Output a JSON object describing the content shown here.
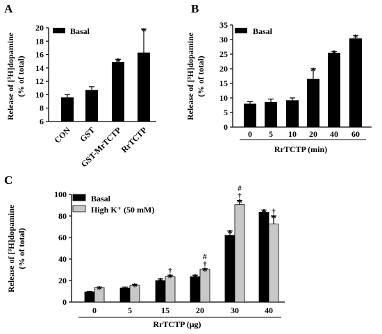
{
  "chart_data": [
    {
      "panel": "A",
      "type": "bar",
      "categories": [
        "CON",
        "GST",
        "GST-MrTCTP",
        "RrTCTP"
      ],
      "series": [
        {
          "name": "Basal",
          "color": "#000000",
          "values": [
            9.6,
            10.7,
            14.9,
            16.3
          ],
          "errors": [
            0.4,
            0.5,
            0.4,
            3.5
          ],
          "markers": [
            "",
            "",
            "*",
            "*"
          ]
        }
      ],
      "ylabel": "Release of [³H]dopamine (% of total)",
      "ylim": [
        6,
        20
      ],
      "yticks": [
        "6",
        "8",
        "10",
        "12",
        "14",
        "16",
        "18",
        "20"
      ],
      "legend": "top-left",
      "grid": false
    },
    {
      "panel": "B",
      "type": "bar",
      "categories": [
        "0",
        "5",
        "10",
        "20",
        "40",
        "60"
      ],
      "series": [
        {
          "name": "Basal",
          "color": "#000000",
          "values": [
            8.0,
            8.6,
            9.2,
            16.5,
            25.5,
            30.4
          ],
          "errors": [
            0.7,
            1.0,
            0.8,
            3.5,
            0.4,
            1.0
          ],
          "markers": [
            "",
            "",
            "",
            "*",
            "*",
            "*"
          ]
        }
      ],
      "ylabel": "Release of [³H]dopamine (% of total)",
      "xlabel": "RrTCTP (min)",
      "ylim": [
        0,
        35
      ],
      "yticks": [
        "0",
        "5",
        "10",
        "15",
        "20",
        "25",
        "30",
        "35"
      ],
      "legend": "top-left",
      "grid": false
    },
    {
      "panel": "C",
      "type": "bar",
      "categories": [
        "0",
        "5",
        "15",
        "20",
        "30",
        "40"
      ],
      "series": [
        {
          "name": "Basal",
          "color": "#000000",
          "values": [
            9.5,
            13.0,
            20.0,
            23.5,
            62.0,
            83.5
          ],
          "errors": [
            0.5,
            1.0,
            1.5,
            1.5,
            4.0,
            2.0
          ],
          "markers": [
            "",
            "",
            "*",
            "*",
            "*",
            "*"
          ]
        },
        {
          "name": "High K⁺ (50 mM)",
          "color": "#c8c8c8",
          "values": [
            13.5,
            15.5,
            23.5,
            30.5,
            90.5,
            72.5
          ],
          "errors": [
            0.5,
            1.0,
            1.5,
            0.5,
            4.0,
            7.5
          ],
          "markers": [
            "*",
            "*",
            "†\n*",
            "#\n†\n*",
            "#\n†\n*",
            "†\n*"
          ]
        }
      ],
      "ylabel": "Release of [³H]dopamine (% of total)",
      "xlabel": "RrTCTP (μg)",
      "ylim": [
        0,
        100
      ],
      "yticks": [
        "0",
        "20",
        "40",
        "60",
        "80",
        "100"
      ],
      "legend": "top-left",
      "grid": false
    }
  ],
  "panels": {
    "a": {
      "letter": "A",
      "legend": "Basal",
      "ylabel1": "Release of [³H]dopamine",
      "ylabel2": "(% of total)"
    },
    "b": {
      "letter": "B",
      "legend": "Basal",
      "ylabel1": "Release of [³H]dopamine",
      "ylabel2": "(% of total)",
      "xlabel": "RrTCTP (min)"
    },
    "c": {
      "letter": "C",
      "legend1": "Basal",
      "legend2": "High K⁺ (50 mM)",
      "ylabel1": "Release of [³H]dopamine",
      "ylabel2": "(% of total)",
      "xlabel": "RrTCTP (μg)"
    }
  }
}
